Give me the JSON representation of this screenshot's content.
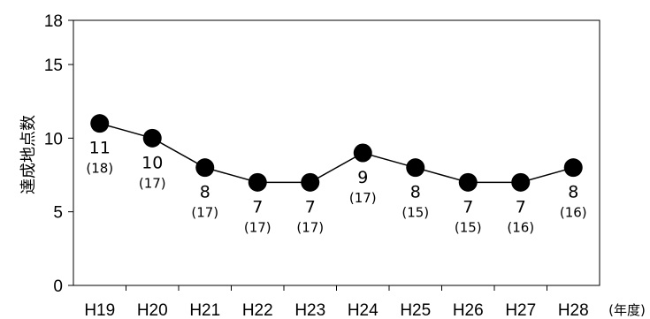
{
  "chart_data": {
    "type": "line",
    "categories": [
      "H19",
      "H20",
      "H21",
      "H22",
      "H23",
      "H24",
      "H25",
      "H26",
      "H27",
      "H28"
    ],
    "values": [
      11,
      10,
      8,
      7,
      7,
      9,
      8,
      7,
      7,
      8
    ],
    "secondary_labels": [
      "(18)",
      "(17)",
      "(17)",
      "(17)",
      "(17)",
      "(17)",
      "(15)",
      "(15)",
      "(16)",
      "(16)"
    ],
    "ylabel": "達成地点数",
    "x_unit": "(年度)",
    "ylim": [
      0,
      18
    ],
    "yticks": [
      0,
      5,
      10,
      15,
      18
    ],
    "grid": false,
    "colors": {
      "line": "#000000",
      "marker": "#000000"
    }
  }
}
